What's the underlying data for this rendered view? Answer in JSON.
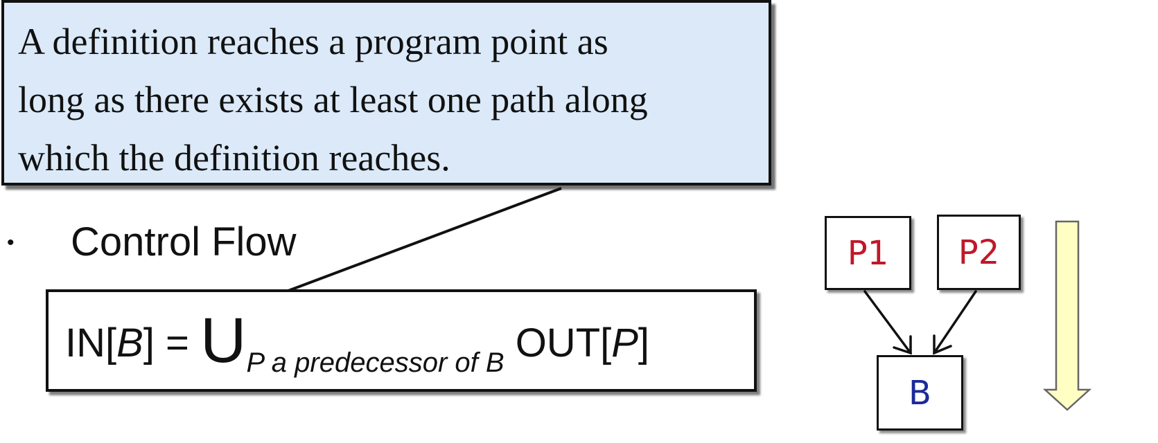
{
  "callout": {
    "line1": "A definition reaches a program point as",
    "line2": "long as there exists at least one path along",
    "line3": "which the definition reaches."
  },
  "bullet": {
    "symbol": "•",
    "label": "Control Flow"
  },
  "formula": {
    "lhs_prefix": "IN[",
    "lhs_var": "B",
    "lhs_suffix": "] =",
    "union_symbol": "U",
    "subscript": "P a predecessor of B",
    "rhs_prefix": "OUT[",
    "rhs_var": "P",
    "rhs_suffix": "]"
  },
  "cfg": {
    "nodes": {
      "p1": "P1",
      "p2": "P2",
      "b": "B"
    },
    "colors": {
      "predecessor_text": "#c0182a",
      "block_text": "#1b2a9a",
      "direction_arrow_fill": "#ffffc4",
      "callout_fill": "#dbe9f8"
    }
  }
}
